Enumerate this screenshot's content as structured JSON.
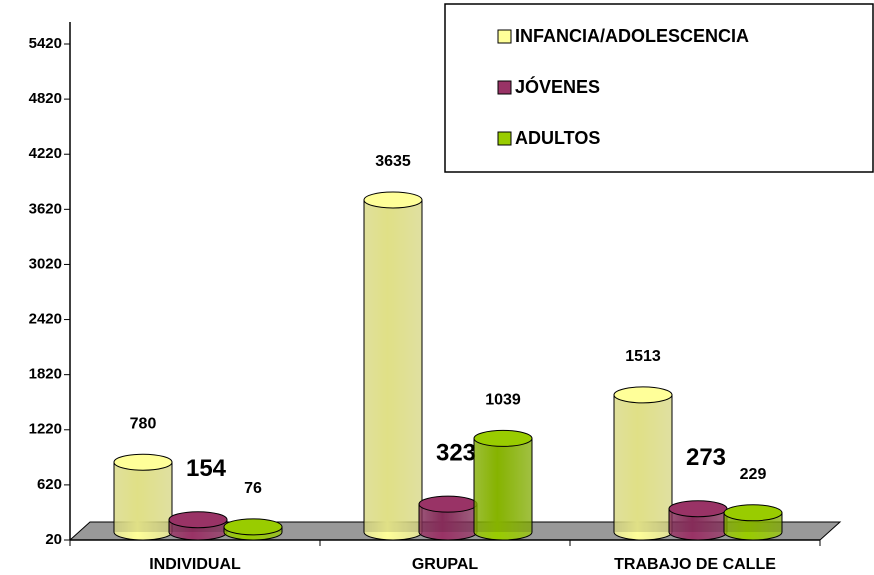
{
  "chart_data": {
    "type": "bar3d",
    "categories": [
      "INDIVIDUAL",
      "GRUPAL",
      "TRABAJO DE CALLE"
    ],
    "series": [
      {
        "name": "INFANCIA/ADOLESCENCIA",
        "color": "#ffff99",
        "values": [
          780,
          3635,
          1513
        ]
      },
      {
        "name": "JÓVENES",
        "color": "#993366",
        "values": [
          154,
          323,
          273
        ]
      },
      {
        "name": "ADULTOS",
        "color": "#99cc00",
        "values": [
          76,
          1039,
          229
        ]
      }
    ],
    "ylim": [
      20,
      5420
    ],
    "yticks": [
      20,
      620,
      1220,
      1820,
      2420,
      3020,
      3620,
      4220,
      4820,
      5420
    ],
    "legend": "top-right"
  }
}
